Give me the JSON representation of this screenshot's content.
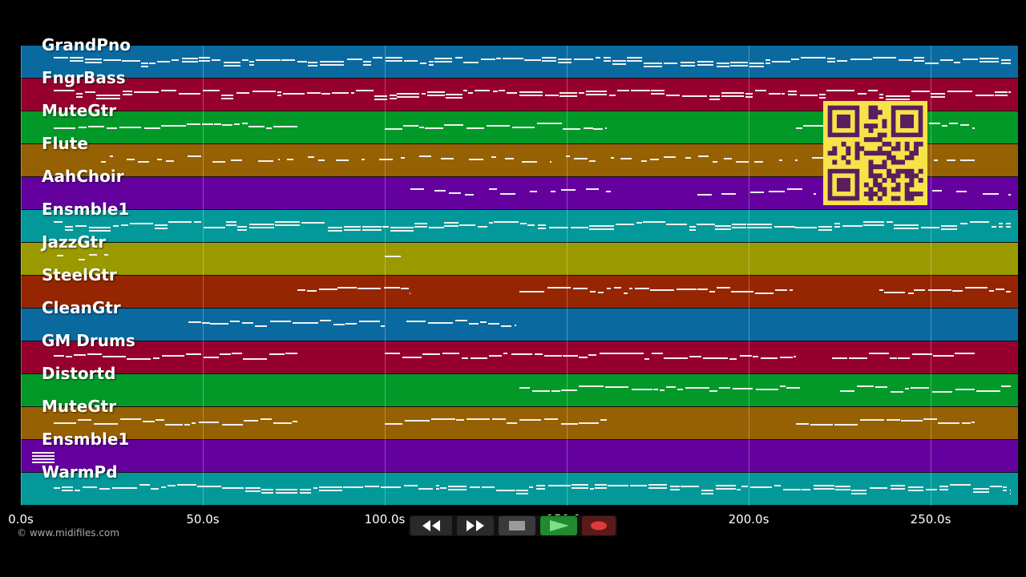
{
  "tracks": [
    {
      "name": "GrandPno",
      "color": "#0a6aa0",
      "pattern": "dense"
    },
    {
      "name": "FngrBass",
      "color": "#96002e",
      "pattern": "dense"
    },
    {
      "name": "MuteGtr",
      "color": "#039928",
      "pattern": "split3"
    },
    {
      "name": "Flute",
      "color": "#966102",
      "pattern": "sparse"
    },
    {
      "name": "AahChoir",
      "color": "#64009e",
      "pattern": "mid"
    },
    {
      "name": "Ensmble1",
      "color": "#03999a",
      "pattern": "dense"
    },
    {
      "name": "JazzGtr",
      "color": "#9a9a00",
      "pattern": "few"
    },
    {
      "name": "SteelGtr",
      "color": "#962602",
      "pattern": "steel"
    },
    {
      "name": "CleanGtr",
      "color": "#0a6aa0",
      "pattern": "clean"
    },
    {
      "name": "GM Drums",
      "color": "#96002e",
      "pattern": "drums"
    },
    {
      "name": "Distortd",
      "color": "#039928",
      "pattern": "distortd"
    },
    {
      "name": "MuteGtr",
      "color": "#966102",
      "pattern": "split3"
    },
    {
      "name": "Ensmble1",
      "color": "#64009e",
      "pattern": "none"
    },
    {
      "name": "WarmPd",
      "color": "#03999a",
      "pattern": "dense"
    }
  ],
  "timeline": {
    "ticks": [
      "0.0s",
      "50.0s",
      "100.0s",
      "150.0s",
      "200.0s",
      "250.0s"
    ],
    "tick_values": [
      0,
      50,
      100,
      150,
      200,
      250
    ],
    "max_seconds": 274
  },
  "copyright": "© www.midifiles.com",
  "transport": {
    "rewind": {
      "label": "rewind",
      "icon": "rewind-icon",
      "color": "#2a2a2a"
    },
    "forward": {
      "label": "fast forward",
      "icon": "fast-forward-icon",
      "color": "#2a2a2a"
    },
    "stop": {
      "label": "stop",
      "icon": "stop-icon",
      "color": "#3a3a3a"
    },
    "play": {
      "label": "play",
      "icon": "play-icon",
      "color": "#1f8a2e"
    },
    "record": {
      "label": "record",
      "icon": "record-icon",
      "color": "#5a1a1a"
    }
  },
  "qr_code": {
    "icon": "qr-code-icon",
    "fg": "#5a1e5e",
    "bg": "#f6e34a"
  }
}
